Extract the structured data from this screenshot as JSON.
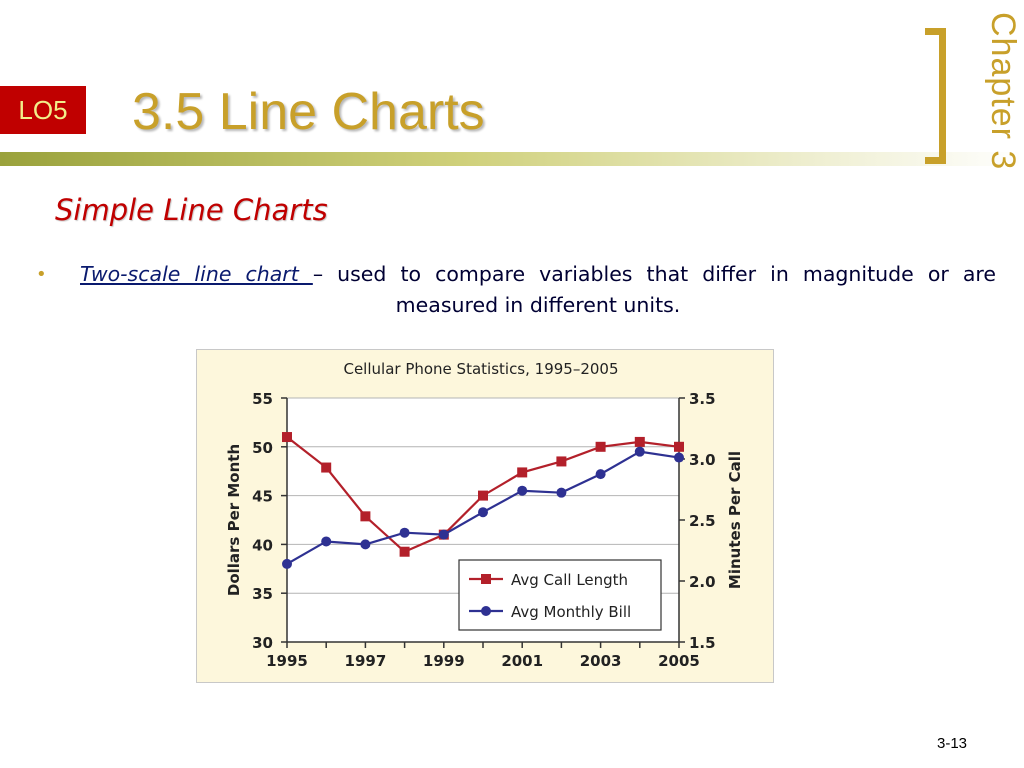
{
  "slide": {
    "badge": "LO5",
    "title": "3.5  Line Charts",
    "chapter": "Chapter  3",
    "subtitle": "Simple Line Charts",
    "bullet_marker": "•",
    "bullet_term": "Two-scale line chart ",
    "bullet_text": "– used to compare variables that differ in magnitude or are measured in different units.",
    "page_number": "3-13"
  },
  "chart_data": {
    "type": "line",
    "title": "Cellular Phone Statistics, 1995–2005",
    "x": [
      1995,
      1996,
      1997,
      1998,
      1999,
      2000,
      2001,
      2002,
      2003,
      2004,
      2005
    ],
    "x_ticks": [
      "1995",
      "1997",
      "1999",
      "2001",
      "2003",
      "2005"
    ],
    "xlim": [
      1995,
      2005
    ],
    "ylabel": "Dollars Per Month",
    "ylim": [
      30,
      55
    ],
    "y_ticks": [
      "30",
      "35",
      "40",
      "45",
      "50",
      "55"
    ],
    "y2label": "Minutes Per Call",
    "y2lim": [
      1.5,
      3.5
    ],
    "y2_ticks": [
      "1.5",
      "2.0",
      "2.5",
      "3.0",
      "3.5"
    ],
    "grid": true,
    "legend": "bottom-right",
    "series": [
      {
        "name": "Avg Call Length",
        "axis": "right",
        "marker": "square",
        "color": "#b3202a",
        "values": [
          3.18,
          2.93,
          2.53,
          2.24,
          2.38,
          2.7,
          2.89,
          2.98,
          3.1,
          3.14,
          3.1
        ]
      },
      {
        "name": "Avg Monthly Bill",
        "axis": "left",
        "marker": "circle",
        "color": "#2e3192",
        "values": [
          38.0,
          40.3,
          40.0,
          41.2,
          41.0,
          43.3,
          45.5,
          45.3,
          47.2,
          49.5,
          48.9
        ]
      }
    ]
  },
  "colors": {
    "accent_gold": "#c8a02a",
    "badge_red": "#c00000",
    "chart_background": "#fdf7dc"
  }
}
